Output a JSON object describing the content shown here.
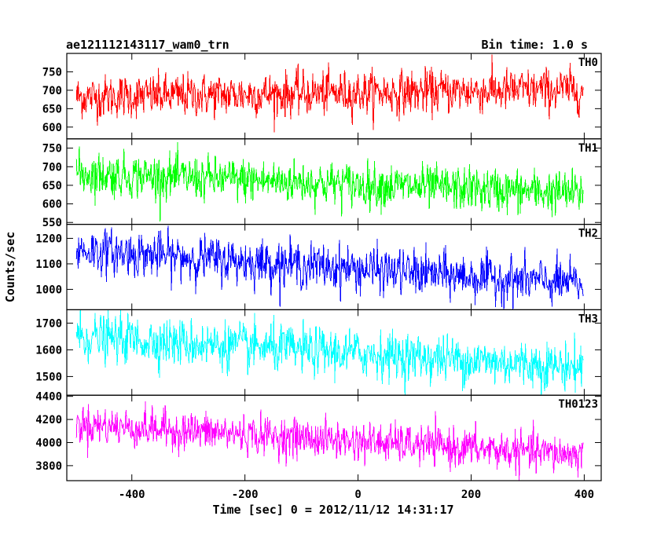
{
  "chart_data": {
    "type": "line",
    "title_left": "ae121112143117_wam0_trn",
    "title_right": "Bin time: 1.0 s",
    "xlabel": "Time [sec] 0 = 2012/11/12 14:31:17",
    "ylabel": "Counts/sec",
    "xlim": [
      -515,
      430
    ],
    "x_ticks": [
      -400,
      -200,
      0,
      200,
      400
    ],
    "x_range_data": [
      -498,
      398
    ],
    "bin_time_s": 1.0,
    "grid": false,
    "panels": [
      {
        "name": "TH0",
        "color": "#ff0000",
        "ylim": [
          568,
          800
        ],
        "y_ticks": [
          600,
          650,
          700,
          750
        ],
        "trend": {
          "start": 682,
          "end": 702
        },
        "noise_sigma": 30
      },
      {
        "name": "TH1",
        "color": "#00ff00",
        "ylim": [
          545,
          775
        ],
        "y_ticks": [
          550,
          600,
          650,
          700,
          750
        ],
        "trend": {
          "start": 682,
          "end": 628
        },
        "noise_sigma": 30
      },
      {
        "name": "TH2",
        "color": "#0000ff",
        "ylim": [
          920,
          1255
        ],
        "y_ticks": [
          1000,
          1100,
          1200
        ],
        "trend": {
          "start": 1155,
          "end": 1020
        },
        "noise_sigma": 45
      },
      {
        "name": "TH3",
        "color": "#00ffff",
        "ylim": [
          1430,
          1750
        ],
        "y_ticks": [
          1500,
          1600,
          1700
        ],
        "trend": {
          "start": 1650,
          "end": 1535
        },
        "noise_sigma": 45
      },
      {
        "name": "TH0123",
        "color": "#ff00ff",
        "ylim": [
          3670,
          4410
        ],
        "y_ticks": [
          3800,
          4000,
          4200,
          4400
        ],
        "trend": {
          "start": 4160,
          "end": 3890
        },
        "noise_sigma": 85
      }
    ]
  }
}
